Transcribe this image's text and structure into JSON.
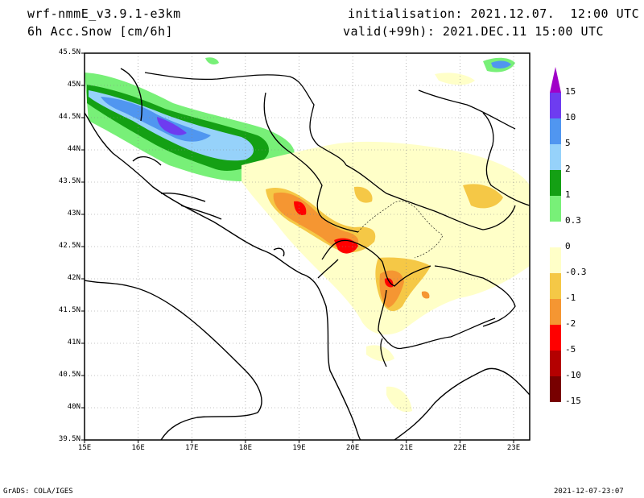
{
  "header": {
    "model": "wrf-nmmE_v3.9.1-e3km",
    "field": "6h Acc.Snow [cm/6h]",
    "init": "initialisation: 2021.12.07.  12:00 UTC",
    "valid": "valid(+99h): 2021.DEC.11 15:00 UTC"
  },
  "footer": {
    "left": "GrADS: COLA/IGES",
    "right": "2021-12-07-23:07"
  },
  "axes": {
    "lat_labels": [
      "45.5N",
      "45N",
      "44.5N",
      "44N",
      "43.5N",
      "43N",
      "42.5N",
      "42N",
      "41.5N",
      "41N",
      "40.5N",
      "40N",
      "39.5N"
    ],
    "lon_labels": [
      "15E",
      "16E",
      "17E",
      "18E",
      "19E",
      "20E",
      "21E",
      "22E",
      "23E"
    ],
    "lon_range": [
      15,
      23.3
    ],
    "lat_range": [
      39.5,
      45.5
    ]
  },
  "colorbar": {
    "labels": [
      "15",
      "10",
      "5",
      "2",
      "1",
      "0.3",
      "0",
      "-0.3",
      "-1",
      "-2",
      "-5",
      "-10",
      "-15"
    ],
    "colors": [
      "#a000c8",
      "#6e3cf0",
      "#5096f0",
      "#96d2fa",
      "#14a014",
      "#78f078",
      "#ffffff",
      "#ffffc8",
      "#f5c846",
      "#f59632",
      "#ff0000",
      "#b40000",
      "#780000"
    ]
  }
}
